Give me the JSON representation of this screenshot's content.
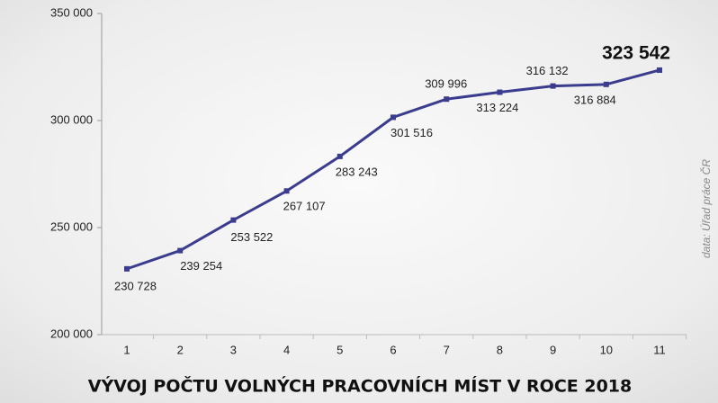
{
  "chart_data": {
    "type": "line",
    "title": "VÝVOJ POČTU VOLNÝCH PRACOVNÍCH MÍST V ROCE 2018",
    "source": "data: Úřad práce ČR",
    "categories": [
      "1",
      "2",
      "3",
      "4",
      "5",
      "6",
      "7",
      "8",
      "9",
      "10",
      "11"
    ],
    "series": [
      {
        "name": "Volná pracovní místa",
        "color": "#3b3c8e",
        "values": [
          230728,
          239254,
          253522,
          267107,
          283243,
          301516,
          309996,
          313224,
          316132,
          316884,
          323542
        ],
        "value_labels": [
          "230 728",
          "239 254",
          "253 522",
          "267 107",
          "283 243",
          "301 516",
          "309 996",
          "313 224",
          "316 132",
          "316 884",
          "323 542"
        ]
      }
    ],
    "ylim": [
      200000,
      350000
    ],
    "yticks": [
      {
        "value": 200000,
        "label": "200 000"
      },
      {
        "value": 250000,
        "label": "250 000"
      },
      {
        "value": 300000,
        "label": "300 000"
      },
      {
        "value": 350000,
        "label": "350 000"
      }
    ],
    "grid": false
  }
}
